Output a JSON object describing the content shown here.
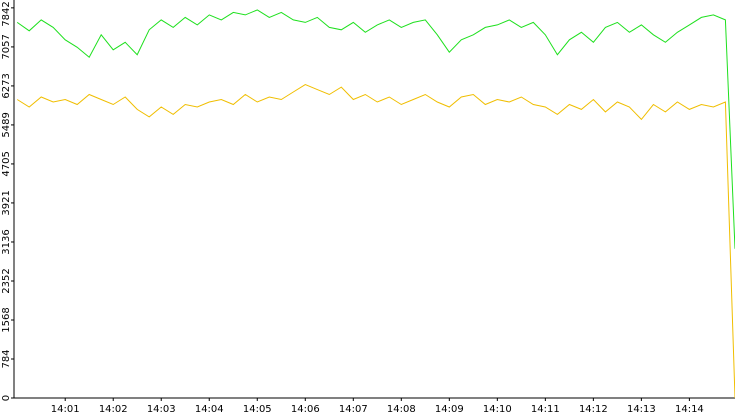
{
  "chart_data": {
    "type": "line",
    "x": [
      0,
      15,
      30,
      45,
      60,
      75,
      90,
      105,
      120,
      135,
      150,
      165,
      180,
      195,
      210,
      225,
      240,
      255,
      270,
      285,
      300,
      315,
      330,
      345,
      360,
      375,
      390,
      405,
      420,
      435,
      450,
      465,
      480,
      495,
      510,
      525,
      540,
      555,
      570,
      585,
      600,
      615,
      630,
      645,
      660,
      675,
      690,
      705,
      720,
      735,
      750,
      765,
      780,
      795,
      810,
      825,
      840,
      855,
      870,
      885,
      897
    ],
    "series": [
      {
        "color": "#1ee01e",
        "values": [
          7550,
          7380,
          7600,
          7450,
          7200,
          7050,
          6850,
          7300,
          7000,
          7150,
          6900,
          7400,
          7600,
          7450,
          7650,
          7500,
          7700,
          7600,
          7750,
          7700,
          7800,
          7650,
          7750,
          7600,
          7550,
          7650,
          7450,
          7400,
          7550,
          7350,
          7500,
          7600,
          7450,
          7550,
          7600,
          7300,
          6950,
          7200,
          7300,
          7450,
          7500,
          7600,
          7450,
          7550,
          7300,
          6900,
          7200,
          7350,
          7150,
          7450,
          7550,
          7350,
          7500,
          7300,
          7150,
          7350,
          7500,
          7650,
          7700,
          7600,
          3000
        ]
      },
      {
        "color": "#f0be00",
        "values": [
          6000,
          5850,
          6050,
          5950,
          6000,
          5900,
          6100,
          6000,
          5900,
          6050,
          5800,
          5650,
          5850,
          5700,
          5900,
          5850,
          5950,
          6000,
          5900,
          6100,
          5950,
          6050,
          6000,
          6150,
          6300,
          6200,
          6100,
          6250,
          6000,
          6100,
          5950,
          6050,
          5900,
          6000,
          6100,
          5950,
          5850,
          6050,
          6100,
          5900,
          6000,
          5950,
          6050,
          5900,
          5850,
          5700,
          5900,
          5800,
          6000,
          5750,
          5950,
          5850,
          5600,
          5900,
          5750,
          5950,
          5800,
          5900,
          5850,
          5950,
          0
        ]
      }
    ],
    "xlim": [
      -4,
      897
    ],
    "xticks": [
      {
        "value": 60,
        "label": "14:01"
      },
      {
        "value": 120,
        "label": "14:02"
      },
      {
        "value": 180,
        "label": "14:03"
      },
      {
        "value": 240,
        "label": "14:04"
      },
      {
        "value": 300,
        "label": "14:05"
      },
      {
        "value": 360,
        "label": "14:06"
      },
      {
        "value": 420,
        "label": "14:07"
      },
      {
        "value": 480,
        "label": "14:08"
      },
      {
        "value": 540,
        "label": "14:09"
      },
      {
        "value": 600,
        "label": "14:10"
      },
      {
        "value": 660,
        "label": "14:11"
      },
      {
        "value": 720,
        "label": "14:12"
      },
      {
        "value": 780,
        "label": "14:13"
      },
      {
        "value": 840,
        "label": "14:14"
      }
    ],
    "ylim": [
      0,
      8000
    ],
    "yticks": [
      0,
      784,
      1568,
      2352,
      3136,
      3921,
      4705,
      5489,
      6273,
      7057,
      7842
    ]
  }
}
